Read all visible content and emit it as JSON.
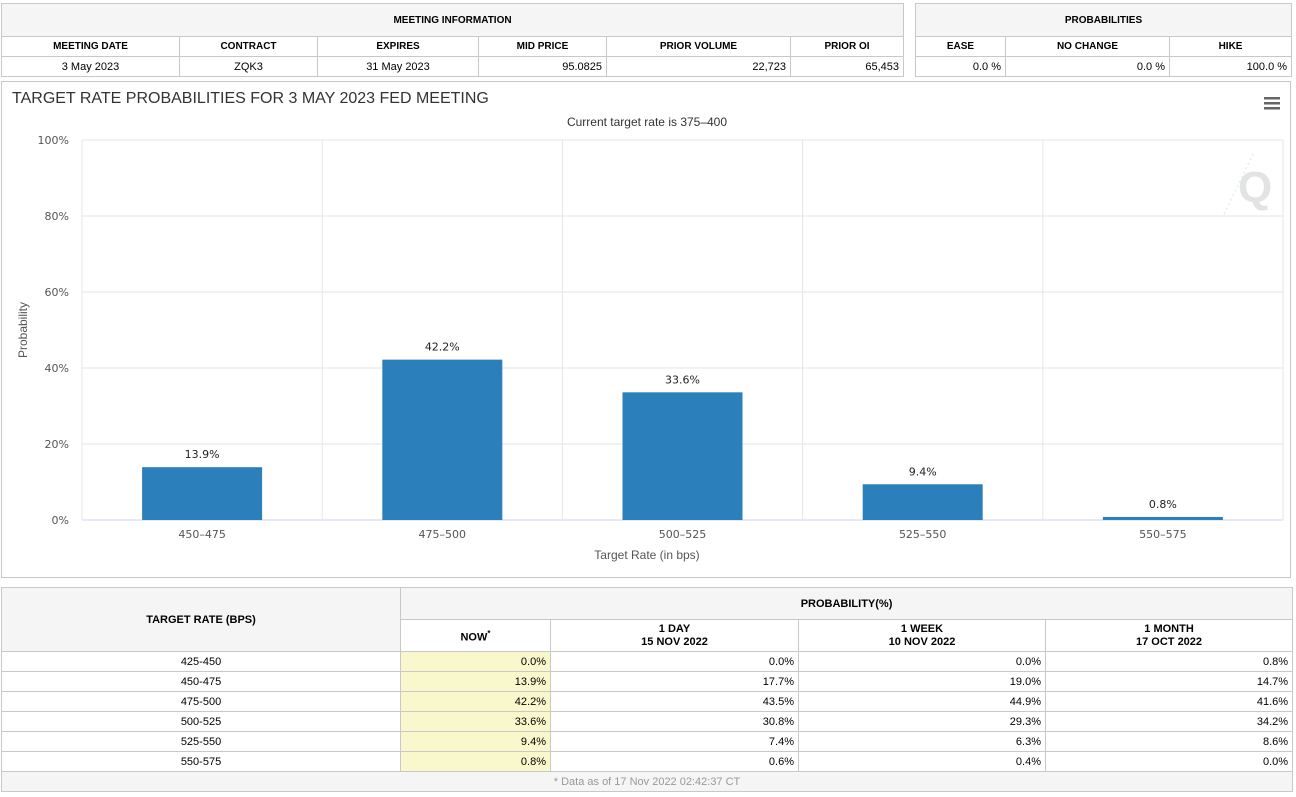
{
  "meeting_info": {
    "title": "MEETING INFORMATION",
    "headers": [
      "MEETING DATE",
      "CONTRACT",
      "EXPIRES",
      "MID PRICE",
      "PRIOR VOLUME",
      "PRIOR OI"
    ],
    "values": [
      "3 May 2023",
      "ZQK3",
      "31 May 2023",
      "95.0825",
      "22,723",
      "65,453"
    ]
  },
  "probabilities": {
    "title": "PROBABILITIES",
    "headers": [
      "EASE",
      "NO CHANGE",
      "HIKE"
    ],
    "values": [
      "0.0 %",
      "0.0 %",
      "100.0 %"
    ]
  },
  "chart_data": {
    "type": "bar",
    "title": "TARGET RATE PROBABILITIES FOR 3 MAY 2023 FED MEETING",
    "subtitle": "Current target rate is 375–400",
    "xlabel": "Target Rate (in bps)",
    "ylabel": "Probability",
    "categories": [
      "450–475",
      "475–500",
      "500–525",
      "525–550",
      "550–575"
    ],
    "values": [
      13.9,
      42.2,
      33.6,
      9.4,
      0.8
    ],
    "data_labels": [
      "13.9%",
      "42.2%",
      "33.6%",
      "9.4%",
      "0.8%"
    ],
    "ylim": [
      0,
      100
    ],
    "yticks": [
      "0%",
      "20%",
      "40%",
      "60%",
      "80%",
      "100%"
    ],
    "grid": true,
    "bar_color": "#2b7fba",
    "watermark": "Q"
  },
  "rate_table": {
    "target_rate_header": "TARGET RATE (BPS)",
    "probability_header": "PROBABILITY(%)",
    "col_now": "NOW",
    "col_now_mark": "*",
    "col_1day": "1 DAY",
    "col_1day_date": "15 NOV 2022",
    "col_1week": "1 WEEK",
    "col_1week_date": "10 NOV 2022",
    "col_1month": "1 MONTH",
    "col_1month_date": "17 OCT 2022",
    "rows": [
      [
        "425-450",
        "0.0%",
        "0.0%",
        "0.0%",
        "0.8%"
      ],
      [
        "450-475",
        "13.9%",
        "17.7%",
        "19.0%",
        "14.7%"
      ],
      [
        "475-500",
        "42.2%",
        "43.5%",
        "44.9%",
        "41.6%"
      ],
      [
        "500-525",
        "33.6%",
        "30.8%",
        "29.3%",
        "34.2%"
      ],
      [
        "525-550",
        "9.4%",
        "7.4%",
        "6.3%",
        "8.6%"
      ],
      [
        "550-575",
        "0.8%",
        "0.6%",
        "0.4%",
        "0.0%"
      ]
    ],
    "footnote": "* Data as of 17 Nov 2022 02:42:37 CT"
  }
}
